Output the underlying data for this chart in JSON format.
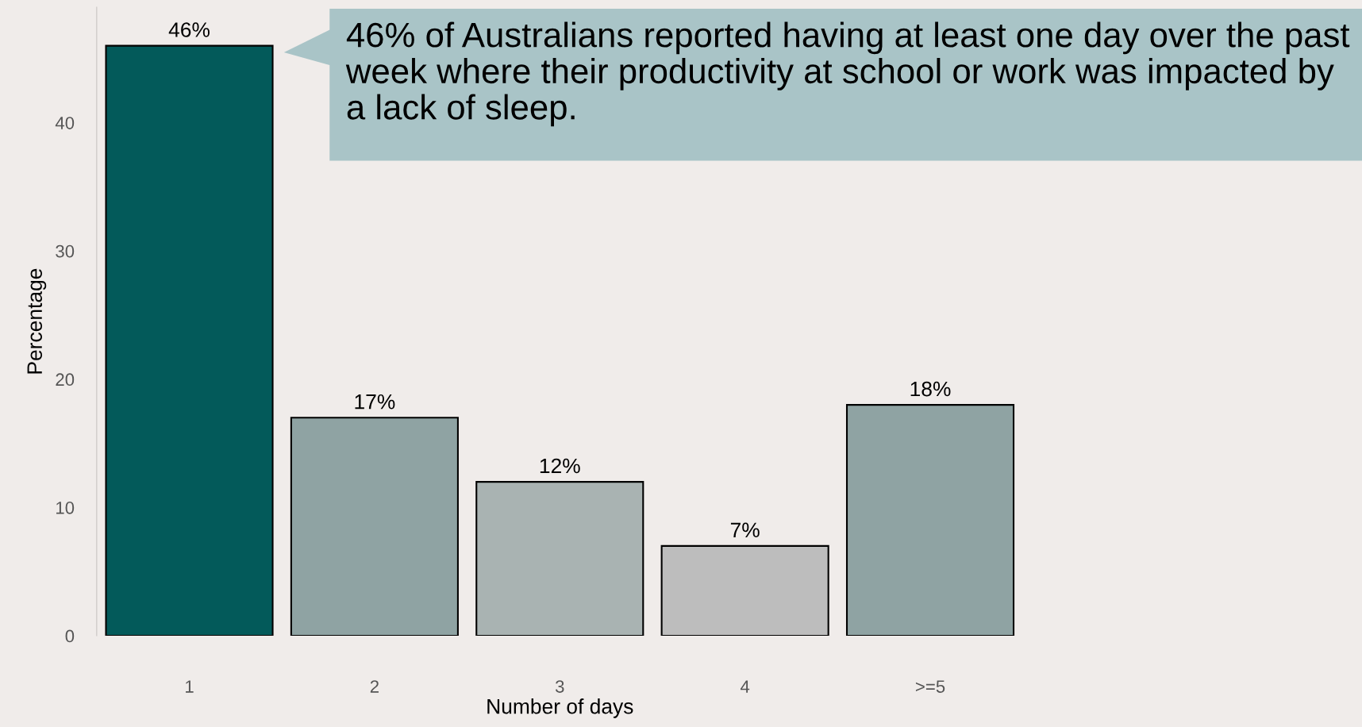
{
  "chart_data": {
    "type": "bar",
    "xlabel": "Number of days",
    "ylabel": "Percentage",
    "categories": [
      "1",
      "2",
      "3",
      "4",
      ">=5"
    ],
    "values": [
      46,
      17,
      12,
      7,
      18
    ],
    "value_labels": [
      "46%",
      "17%",
      "12%",
      "7%",
      "18%"
    ],
    "colors": [
      "#035a5a",
      "#8fa3a3",
      "#a9b3b2",
      "#bdbdbd",
      "#8fa3a3"
    ],
    "ylim": [
      0,
      49
    ],
    "yticks": [
      0,
      10,
      20,
      30,
      40
    ],
    "grid": false,
    "legend": false,
    "annotations": [
      "46% of Australians reported having at least one day over the past week where their productivity at school or work was impacted by a lack of sleep."
    ]
  }
}
